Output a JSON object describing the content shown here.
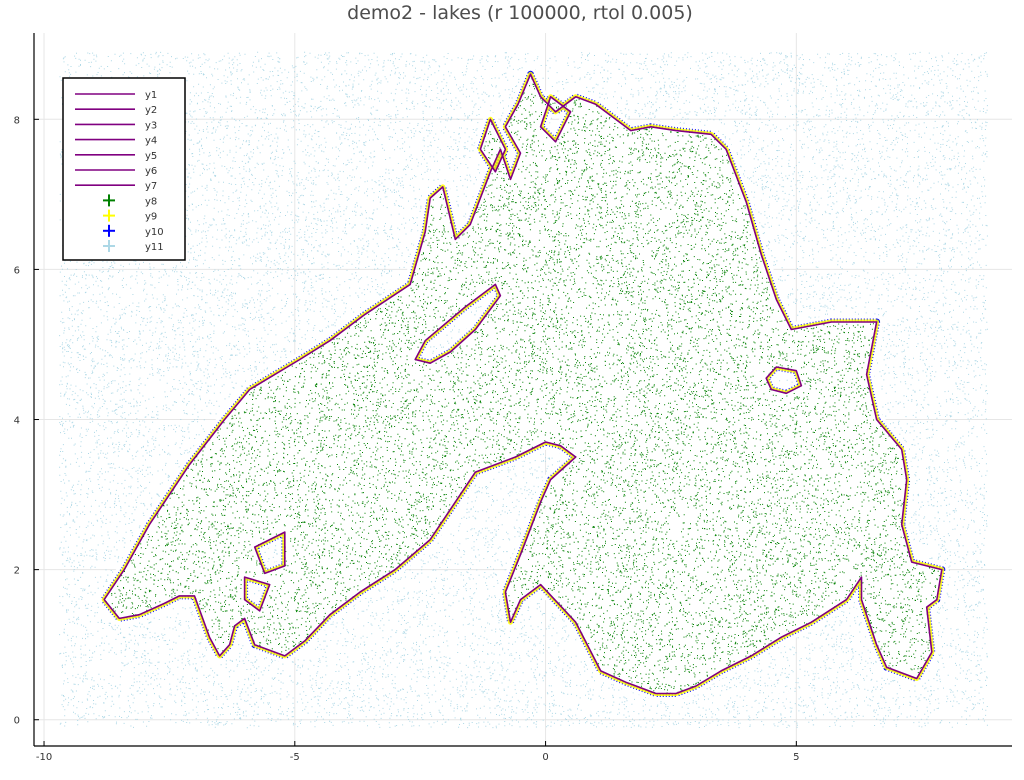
{
  "chart_data": {
    "type": "scatter",
    "title": "demo2 - lakes (r 100000, rtol 0.005)",
    "xlabel": "",
    "ylabel": "",
    "xlim": [
      -10.2,
      9.3
    ],
    "ylim": [
      -0.35,
      9.15
    ],
    "x_ticks": [
      -10,
      -5,
      0,
      5
    ],
    "y_ticks": [
      0,
      2,
      4,
      6,
      8
    ],
    "grid": true,
    "legend_position": "top-left",
    "colors": {
      "line": "#800080",
      "y8": "#008000",
      "y9": "#ffff00",
      "y10": "#0000ff",
      "y11": "#add8e6",
      "axis": "#000000",
      "grid": "#e6e6e6"
    },
    "legend": [
      {
        "label": "y1",
        "kind": "line",
        "color": "#800080"
      },
      {
        "label": "y2",
        "kind": "line",
        "color": "#800080"
      },
      {
        "label": "y3",
        "kind": "line",
        "color": "#800080"
      },
      {
        "label": "y4",
        "kind": "line",
        "color": "#800080"
      },
      {
        "label": "y5",
        "kind": "line",
        "color": "#800080"
      },
      {
        "label": "y6",
        "kind": "line",
        "color": "#800080"
      },
      {
        "label": "y7",
        "kind": "line",
        "color": "#800080"
      },
      {
        "label": "y8",
        "kind": "marker",
        "color": "#008000"
      },
      {
        "label": "y9",
        "kind": "marker",
        "color": "#ffff00"
      },
      {
        "label": "y10",
        "kind": "marker",
        "color": "#0000ff"
      },
      {
        "label": "y11",
        "kind": "marker",
        "color": "#add8e6"
      }
    ],
    "sample_bounds": {
      "x": [
        -9.7,
        8.8
      ],
      "y": [
        -0.1,
        8.9
      ]
    },
    "series": [
      {
        "name": "y1",
        "kind": "line",
        "closed": true,
        "points": [
          [
            -8.8,
            1.6
          ],
          [
            -8.4,
            2.0
          ],
          [
            -7.9,
            2.6
          ],
          [
            -7.1,
            3.4
          ],
          [
            -6.4,
            4.0
          ],
          [
            -5.9,
            4.4
          ],
          [
            -4.9,
            4.8
          ],
          [
            -4.3,
            5.05
          ],
          [
            -3.6,
            5.4
          ],
          [
            -2.7,
            5.8
          ],
          [
            -2.4,
            6.5
          ],
          [
            -2.3,
            6.95
          ],
          [
            -2.05,
            7.1
          ],
          [
            -1.8,
            6.4
          ],
          [
            -1.5,
            6.6
          ],
          [
            -1.1,
            7.3
          ],
          [
            -0.9,
            7.6
          ],
          [
            -0.7,
            7.2
          ],
          [
            -0.5,
            7.55
          ],
          [
            -0.8,
            7.9
          ],
          [
            -0.55,
            8.2
          ],
          [
            -0.3,
            8.6
          ],
          [
            -0.1,
            8.3
          ],
          [
            0.2,
            8.1
          ],
          [
            0.6,
            8.3
          ],
          [
            1.0,
            8.2
          ],
          [
            1.3,
            8.05
          ],
          [
            1.7,
            7.85
          ],
          [
            2.1,
            7.9
          ],
          [
            2.6,
            7.85
          ],
          [
            3.3,
            7.8
          ],
          [
            3.6,
            7.6
          ],
          [
            4.0,
            6.9
          ],
          [
            4.3,
            6.2
          ],
          [
            4.6,
            5.6
          ],
          [
            4.9,
            5.2
          ],
          [
            5.7,
            5.3
          ],
          [
            6.6,
            5.3
          ],
          [
            6.4,
            4.6
          ],
          [
            6.6,
            4.0
          ],
          [
            7.1,
            3.6
          ],
          [
            7.2,
            3.2
          ],
          [
            7.1,
            2.6
          ],
          [
            7.3,
            2.1
          ],
          [
            7.9,
            2.0
          ],
          [
            7.8,
            1.6
          ],
          [
            7.6,
            1.5
          ],
          [
            7.7,
            0.9
          ],
          [
            7.4,
            0.55
          ],
          [
            6.8,
            0.7
          ],
          [
            6.6,
            1.0
          ],
          [
            6.3,
            1.6
          ],
          [
            6.3,
            1.9
          ],
          [
            6.0,
            1.6
          ],
          [
            5.3,
            1.3
          ],
          [
            4.7,
            1.1
          ],
          [
            4.1,
            0.85
          ],
          [
            3.5,
            0.65
          ],
          [
            3.0,
            0.45
          ],
          [
            2.6,
            0.35
          ],
          [
            2.2,
            0.35
          ],
          [
            1.6,
            0.5
          ],
          [
            1.1,
            0.65
          ],
          [
            0.6,
            1.3
          ],
          [
            -0.1,
            1.8
          ],
          [
            -0.5,
            1.6
          ],
          [
            -0.7,
            1.3
          ],
          [
            -0.8,
            1.7
          ],
          [
            -0.5,
            2.2
          ],
          [
            -0.1,
            2.9
          ],
          [
            0.1,
            3.2
          ],
          [
            0.6,
            3.5
          ],
          [
            0.3,
            3.65
          ],
          [
            0,
            3.7
          ],
          [
            -0.6,
            3.5
          ],
          [
            -1.4,
            3.3
          ],
          [
            -1.8,
            2.9
          ],
          [
            -2.3,
            2.4
          ],
          [
            -3.0,
            2.0
          ],
          [
            -3.7,
            1.7
          ],
          [
            -4.3,
            1.4
          ],
          [
            -4.8,
            1.05
          ],
          [
            -5.2,
            0.85
          ],
          [
            -5.8,
            1.0
          ],
          [
            -6.0,
            1.35
          ],
          [
            -6.2,
            1.25
          ],
          [
            -6.3,
            1.0
          ],
          [
            -6.5,
            0.85
          ],
          [
            -6.7,
            1.1
          ],
          [
            -7.0,
            1.65
          ],
          [
            -7.3,
            1.65
          ],
          [
            -7.6,
            1.55
          ],
          [
            -8.1,
            1.4
          ],
          [
            -8.5,
            1.35
          ]
        ]
      },
      {
        "name": "y2",
        "kind": "line",
        "closed": true,
        "points": [
          [
            -2.6,
            4.8
          ],
          [
            -2.4,
            5.05
          ],
          [
            -1.6,
            5.5
          ],
          [
            -1.0,
            5.8
          ],
          [
            -0.9,
            5.65
          ],
          [
            -1.4,
            5.2
          ],
          [
            -1.9,
            4.9
          ],
          [
            -2.3,
            4.75
          ]
        ]
      },
      {
        "name": "y3",
        "kind": "line",
        "closed": true,
        "points": [
          [
            4.4,
            4.55
          ],
          [
            4.6,
            4.7
          ],
          [
            5.0,
            4.65
          ],
          [
            5.1,
            4.45
          ],
          [
            4.8,
            4.35
          ],
          [
            4.5,
            4.4
          ]
        ]
      },
      {
        "name": "y4",
        "kind": "line",
        "closed": true,
        "points": [
          [
            -1.3,
            7.6
          ],
          [
            -1.1,
            8.0
          ],
          [
            -0.8,
            7.6
          ],
          [
            -1.0,
            7.3
          ]
        ]
      },
      {
        "name": "y5",
        "kind": "line",
        "closed": true,
        "points": [
          [
            -0.1,
            7.9
          ],
          [
            0.1,
            8.3
          ],
          [
            0.5,
            8.1
          ],
          [
            0.2,
            7.7
          ]
        ]
      },
      {
        "name": "y6",
        "kind": "line",
        "closed": true,
        "points": [
          [
            -5.8,
            2.3
          ],
          [
            -5.2,
            2.5
          ],
          [
            -5.2,
            2.05
          ],
          [
            -5.6,
            1.95
          ]
        ]
      },
      {
        "name": "y7",
        "kind": "line",
        "closed": true,
        "points": [
          [
            -6.0,
            1.9
          ],
          [
            -5.5,
            1.8
          ],
          [
            -5.7,
            1.45
          ],
          [
            -6.0,
            1.6
          ]
        ]
      },
      {
        "name": "y8",
        "kind": "marker",
        "role": "inside"
      },
      {
        "name": "y9",
        "kind": "marker",
        "role": "near boundary"
      },
      {
        "name": "y10",
        "kind": "marker",
        "role": "outside edge"
      },
      {
        "name": "y11",
        "kind": "marker",
        "role": "outside"
      }
    ]
  }
}
